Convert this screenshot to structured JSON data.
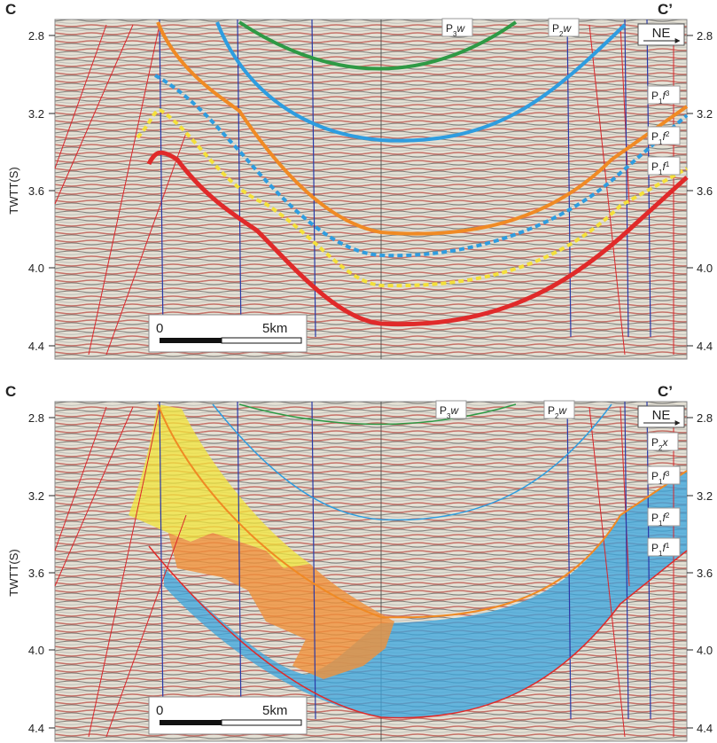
{
  "panels": [
    {
      "left_label": "C",
      "right_label": "C’",
      "y_axis_title": "TWTT(S)",
      "ticks": [
        "2.8",
        "3.2",
        "3.6",
        "4.0",
        "4.4"
      ],
      "direction": "NE",
      "horizons": [
        {
          "base": "P",
          "sub": "3",
          "suffix": "w"
        },
        {
          "base": "P",
          "sub": "2",
          "suffix": "w"
        },
        {
          "base": "P",
          "sub": "1",
          "suffix": "f",
          "sup": "3"
        },
        {
          "base": "P",
          "sub": "1",
          "suffix": "f",
          "sup": "2"
        },
        {
          "base": "P",
          "sub": "1",
          "suffix": "f",
          "sup": "1"
        }
      ],
      "scale_bar": {
        "start": "0",
        "end": "5km"
      }
    },
    {
      "left_label": "C",
      "right_label": "C’",
      "y_axis_title": "TWTT(S)",
      "ticks": [
        "2.8",
        "3.2",
        "3.6",
        "4.0",
        "4.4"
      ],
      "direction": "NE",
      "horizons": [
        {
          "base": "P",
          "sub": "3",
          "suffix": "w"
        },
        {
          "base": "P",
          "sub": "2",
          "suffix": "w"
        },
        {
          "base": "P",
          "sub": "2",
          "suffix": "x"
        },
        {
          "base": "P",
          "sub": "1",
          "suffix": "f",
          "sup": "3"
        },
        {
          "base": "P",
          "sub": "1",
          "suffix": "f",
          "sup": "2"
        },
        {
          "base": "P",
          "sub": "1",
          "suffix": "f",
          "sup": "1"
        }
      ],
      "scale_bar": {
        "start": "0",
        "end": "5km"
      }
    }
  ]
}
